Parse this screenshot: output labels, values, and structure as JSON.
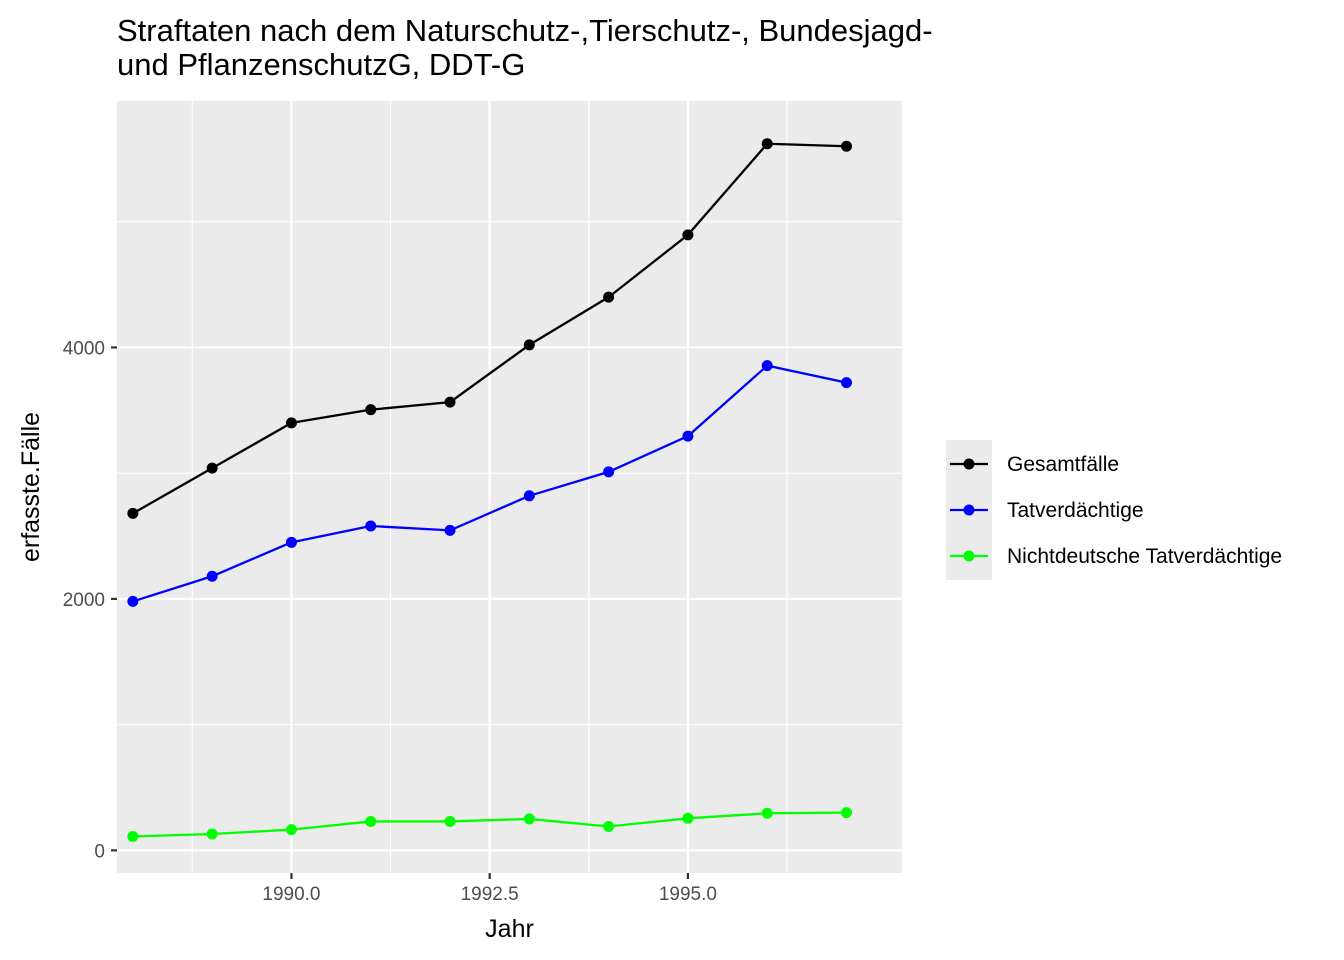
{
  "chart_data": {
    "type": "line",
    "title": [
      "Straftaten nach dem Naturschutz-,Tierschutz-, Bundesjagd-",
      "und PflanzenschutzG, DDT-G"
    ],
    "xlabel": "Jahr",
    "ylabel": "erfasste.Fälle",
    "xlim": [
      1987.8,
      1997.7
    ],
    "ylim": [
      -180,
      5960
    ],
    "x_ticks": [
      1990,
      1992.5,
      1995
    ],
    "x_tick_labels": [
      "1990.0",
      "1992.5",
      "1995.0"
    ],
    "y_ticks": [
      0,
      2000,
      4000
    ],
    "y_tick_labels": [
      "0",
      "2000",
      "4000"
    ],
    "grid": true,
    "legend_position": "right",
    "x": [
      1988,
      1989,
      1990,
      1991,
      1992,
      1993,
      1994,
      1995,
      1996,
      1997
    ],
    "series": [
      {
        "name": "Gesamtfälle",
        "color": "#000000",
        "values": [
          2680,
          3040,
          3400,
          3505,
          3565,
          4020,
          4400,
          4895,
          5620,
          5600
        ]
      },
      {
        "name": "Tatverdächtige",
        "color": "#0000ff",
        "values": [
          1980,
          2180,
          2450,
          2580,
          2545,
          2820,
          3010,
          3295,
          3855,
          3720
        ]
      },
      {
        "name": "Nichtdeutsche Tatverdächtige",
        "color": "#00ff00",
        "values": [
          110,
          130,
          165,
          230,
          230,
          250,
          190,
          255,
          295,
          300
        ]
      }
    ]
  }
}
